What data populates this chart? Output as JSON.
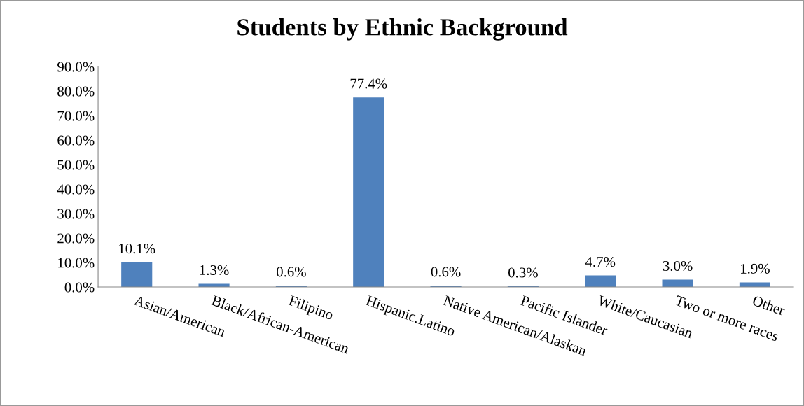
{
  "chart_data": {
    "type": "bar",
    "title": "Students by Ethnic Background",
    "categories": [
      "Asian/American",
      "Black/African-American",
      "Filipino",
      "Hispanic.Latino",
      "Native American/Alaskan",
      "Pacific Islander",
      "White/Caucasian",
      "Two or more races",
      "Other"
    ],
    "values": [
      10.1,
      1.3,
      0.6,
      77.4,
      0.6,
      0.3,
      4.7,
      3.0,
      1.9
    ],
    "value_labels": [
      "10.1%",
      "1.3%",
      "0.6%",
      "77.4%",
      "0.6%",
      "0.3%",
      "4.7%",
      "3.0%",
      "1.9%"
    ],
    "color": "#4f81bd",
    "ylim": [
      0,
      90
    ],
    "yticks": [
      {
        "value": 0,
        "label": "0.0%"
      },
      {
        "value": 10,
        "label": "10.0%"
      },
      {
        "value": 20,
        "label": "20.0%"
      },
      {
        "value": 30,
        "label": "30.0%"
      },
      {
        "value": 40,
        "label": "40.0%"
      },
      {
        "value": 50,
        "label": "50.0%"
      },
      {
        "value": 60,
        "label": "60.0%"
      },
      {
        "value": 70,
        "label": "70.0%"
      },
      {
        "value": 80,
        "label": "80.0%"
      },
      {
        "value": 90,
        "label": "90.0%"
      }
    ],
    "grid": false,
    "legend": false
  }
}
